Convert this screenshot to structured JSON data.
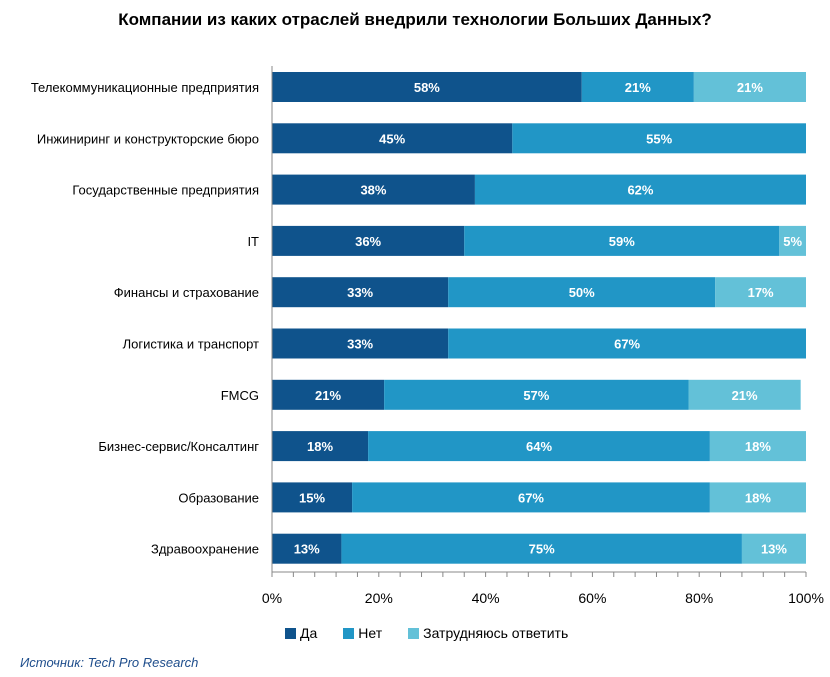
{
  "chart_data": {
    "type": "bar",
    "orientation": "horizontal",
    "stacked": true,
    "title": "Компании из  каких отраслей внедрили технологии Больших Данных?",
    "categories": [
      "Телекоммуникационные предприятия",
      "Инжиниринг и конструкторские бюро",
      "Государственные предприятия",
      "IT",
      "Финансы  и страхование",
      "Логистика и транспорт",
      "FMCG",
      "Бизнес-сервис/Консалтинг",
      "Образование",
      "Здравоохранение"
    ],
    "series": [
      {
        "name": "Да",
        "color": "#0f538c",
        "values": [
          58,
          45,
          38,
          36,
          33,
          33,
          21,
          18,
          15,
          13
        ]
      },
      {
        "name": "Нет",
        "color": "#2196c6",
        "values": [
          21,
          55,
          62,
          59,
          50,
          67,
          57,
          64,
          67,
          75
        ]
      },
      {
        "name": "Затрудняюсь ответить",
        "color": "#63c1d8",
        "values": [
          21,
          0,
          0,
          5,
          17,
          0,
          21,
          18,
          18,
          13
        ]
      }
    ],
    "xlim": [
      0,
      100
    ],
    "xticks": [
      "0%",
      "20%",
      "40%",
      "60%",
      "80%",
      "100%"
    ],
    "legend_position": "bottom",
    "value_suffix": "%"
  },
  "source": "Источник: Tech  Pro Research"
}
